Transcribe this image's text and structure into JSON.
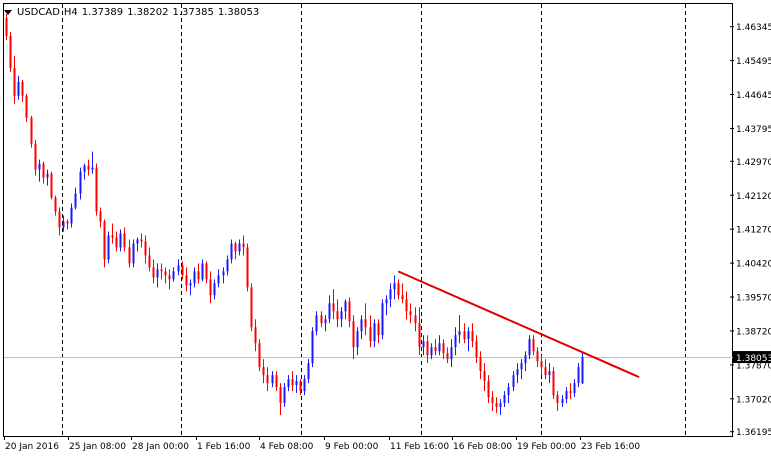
{
  "header": {
    "symbol": "USDCAD",
    "timeframe": "H4",
    "open": "1.37389",
    "high": "1.38202",
    "low": "1.37385",
    "close": "1.38053"
  },
  "price_scale": {
    "ticks": [
      "1.46345",
      "1.45495",
      "1.44645",
      "1.43795",
      "1.42970",
      "1.42120",
      "1.41270",
      "1.40420",
      "1.39570",
      "1.38720",
      "1.37870",
      "1.37020",
      "1.36195"
    ],
    "current_price_label": "1.38053"
  },
  "time_scale": {
    "labels": [
      "20 Jan 2016",
      "25 Jan 08:00",
      "28 Jan 00:00",
      "1 Feb 16:00",
      "4 Feb 08:00",
      "9 Feb 00:00",
      "11 Feb 16:00",
      "16 Feb 08:00",
      "19 Feb 00:00",
      "23 Feb 16:00"
    ]
  },
  "colors": {
    "bull": "#1a1aff",
    "bear": "#ff0000",
    "trendline": "#e00000",
    "grid": "#000000",
    "price_line": "#c0c0c0"
  },
  "chart_data": {
    "type": "candlestick",
    "symbol": "USDCAD",
    "timeframe": "H4",
    "ylim": [
      1.3615,
      1.4665
    ],
    "candles": [
      [
        1.4655,
        1.4665,
        1.46,
        1.461
      ],
      [
        1.461,
        1.462,
        1.452,
        1.453
      ],
      [
        1.453,
        1.456,
        1.444,
        1.446
      ],
      [
        1.446,
        1.451,
        1.445,
        1.4495
      ],
      [
        1.4495,
        1.45,
        1.4445,
        1.446
      ],
      [
        1.446,
        1.4465,
        1.4395,
        1.4405
      ],
      [
        1.4405,
        1.441,
        1.433,
        1.434
      ],
      [
        1.434,
        1.435,
        1.426,
        1.4275
      ],
      [
        1.4275,
        1.43,
        1.4245,
        1.429
      ],
      [
        1.429,
        1.4295,
        1.424,
        1.4255
      ],
      [
        1.4255,
        1.4275,
        1.4235,
        1.4265
      ],
      [
        1.4265,
        1.427,
        1.42,
        1.4205
      ],
      [
        1.4205,
        1.421,
        1.416,
        1.417
      ],
      [
        1.417,
        1.418,
        1.411,
        1.413
      ],
      [
        1.413,
        1.416,
        1.412,
        1.4145
      ],
      [
        1.4145,
        1.415,
        1.4125,
        1.414
      ],
      [
        1.414,
        1.419,
        1.413,
        1.418
      ],
      [
        1.418,
        1.423,
        1.4175,
        1.4215
      ],
      [
        1.4215,
        1.428,
        1.42,
        1.427
      ],
      [
        1.427,
        1.429,
        1.425,
        1.4285
      ],
      [
        1.4285,
        1.43,
        1.426,
        1.4275
      ],
      [
        1.4275,
        1.432,
        1.4265,
        1.428
      ],
      [
        1.428,
        1.429,
        1.416,
        1.417
      ],
      [
        1.417,
        1.418,
        1.413,
        1.4145
      ],
      [
        1.4145,
        1.415,
        1.403,
        1.405
      ],
      [
        1.405,
        1.412,
        1.404,
        1.411
      ],
      [
        1.411,
        1.414,
        1.409,
        1.4105
      ],
      [
        1.4105,
        1.412,
        1.407,
        1.408
      ],
      [
        1.408,
        1.4125,
        1.407,
        1.4115
      ],
      [
        1.4115,
        1.413,
        1.407,
        1.408
      ],
      [
        1.408,
        1.41,
        1.403,
        1.404
      ],
      [
        1.404,
        1.41,
        1.403,
        1.409
      ],
      [
        1.409,
        1.4105,
        1.407,
        1.41
      ],
      [
        1.41,
        1.4115,
        1.408,
        1.4095
      ],
      [
        1.4095,
        1.411,
        1.404,
        1.406
      ],
      [
        1.406,
        1.408,
        1.402,
        1.403
      ],
      [
        1.403,
        1.405,
        1.399,
        1.4005
      ],
      [
        1.4005,
        1.404,
        1.398,
        1.4025
      ],
      [
        1.4025,
        1.404,
        1.4,
        1.402
      ],
      [
        1.402,
        1.403,
        1.399,
        1.401
      ],
      [
        1.401,
        1.4025,
        1.3975,
        1.4
      ],
      [
        1.4,
        1.403,
        1.3995,
        1.402
      ],
      [
        1.402,
        1.405,
        1.401,
        1.4035
      ],
      [
        1.4035,
        1.4045,
        1.4,
        1.401
      ],
      [
        1.401,
        1.403,
        1.397,
        1.3985
      ],
      [
        1.3985,
        1.4,
        1.396,
        1.399
      ],
      [
        1.399,
        1.403,
        1.398,
        1.402
      ],
      [
        1.402,
        1.404,
        1.399,
        1.4
      ],
      [
        1.4,
        1.405,
        1.3995,
        1.404
      ],
      [
        1.404,
        1.4045,
        1.399,
        1.4
      ],
      [
        1.4,
        1.402,
        1.394,
        1.396
      ],
      [
        1.396,
        1.4,
        1.395,
        1.399
      ],
      [
        1.399,
        1.4025,
        1.398,
        1.401
      ],
      [
        1.401,
        1.403,
        1.399,
        1.402
      ],
      [
        1.402,
        1.406,
        1.401,
        1.405
      ],
      [
        1.405,
        1.41,
        1.404,
        1.409
      ],
      [
        1.409,
        1.4095,
        1.405,
        1.407
      ],
      [
        1.407,
        1.41,
        1.406,
        1.409
      ],
      [
        1.409,
        1.411,
        1.406,
        1.408
      ],
      [
        1.408,
        1.409,
        1.397,
        1.398
      ],
      [
        1.398,
        1.399,
        1.387,
        1.388
      ],
      [
        1.388,
        1.39,
        1.382,
        1.384
      ],
      [
        1.384,
        1.385,
        1.377,
        1.378
      ],
      [
        1.378,
        1.38,
        1.374,
        1.376
      ],
      [
        1.376,
        1.378,
        1.372,
        1.374
      ],
      [
        1.374,
        1.377,
        1.373,
        1.376
      ],
      [
        1.376,
        1.377,
        1.372,
        1.373
      ],
      [
        1.373,
        1.374,
        1.366,
        1.369
      ],
      [
        1.369,
        1.374,
        1.368,
        1.373
      ],
      [
        1.373,
        1.376,
        1.372,
        1.375
      ],
      [
        1.375,
        1.377,
        1.372,
        1.3735
      ],
      [
        1.3735,
        1.376,
        1.3715,
        1.3745
      ],
      [
        1.3745,
        1.375,
        1.371,
        1.372
      ],
      [
        1.372,
        1.376,
        1.371,
        1.375
      ],
      [
        1.375,
        1.38,
        1.374,
        1.379
      ],
      [
        1.379,
        1.388,
        1.378,
        1.387
      ],
      [
        1.387,
        1.392,
        1.386,
        1.391
      ],
      [
        1.391,
        1.392,
        1.388,
        1.389
      ],
      [
        1.389,
        1.391,
        1.387,
        1.39
      ],
      [
        1.39,
        1.396,
        1.389,
        1.394
      ],
      [
        1.394,
        1.3975,
        1.39,
        1.392
      ],
      [
        1.392,
        1.395,
        1.388,
        1.39
      ],
      [
        1.39,
        1.393,
        1.388,
        1.392
      ],
      [
        1.392,
        1.395,
        1.39,
        1.3945
      ],
      [
        1.3945,
        1.3955,
        1.388,
        1.3895
      ],
      [
        1.3895,
        1.391,
        1.38,
        1.383
      ],
      [
        1.383,
        1.388,
        1.381,
        1.387
      ],
      [
        1.387,
        1.391,
        1.385,
        1.39
      ],
      [
        1.39,
        1.394,
        1.386,
        1.388
      ],
      [
        1.388,
        1.391,
        1.383,
        1.3845
      ],
      [
        1.3845,
        1.39,
        1.383,
        1.389
      ],
      [
        1.389,
        1.39,
        1.384,
        1.386
      ],
      [
        1.386,
        1.395,
        1.385,
        1.394
      ],
      [
        1.394,
        1.396,
        1.391,
        1.395
      ],
      [
        1.395,
        1.399,
        1.393,
        1.3975
      ],
      [
        1.3975,
        1.401,
        1.395,
        1.399
      ],
      [
        1.399,
        1.4,
        1.395,
        1.396
      ],
      [
        1.396,
        1.399,
        1.394,
        1.395
      ],
      [
        1.395,
        1.397,
        1.39,
        1.392
      ],
      [
        1.392,
        1.394,
        1.389,
        1.391
      ],
      [
        1.391,
        1.393,
        1.387,
        1.389
      ],
      [
        1.389,
        1.393,
        1.381,
        1.383
      ],
      [
        1.383,
        1.386,
        1.381,
        1.3845
      ],
      [
        1.3845,
        1.386,
        1.379,
        1.381
      ],
      [
        1.381,
        1.384,
        1.38,
        1.383
      ],
      [
        1.383,
        1.385,
        1.381,
        1.382
      ],
      [
        1.382,
        1.386,
        1.381,
        1.384
      ],
      [
        1.384,
        1.385,
        1.38,
        1.3815
      ],
      [
        1.3815,
        1.383,
        1.379,
        1.38
      ],
      [
        1.38,
        1.385,
        1.378,
        1.383
      ],
      [
        1.383,
        1.388,
        1.381,
        1.386
      ],
      [
        1.386,
        1.391,
        1.384,
        1.387
      ],
      [
        1.387,
        1.389,
        1.384,
        1.385
      ],
      [
        1.385,
        1.388,
        1.382,
        1.387
      ],
      [
        1.387,
        1.389,
        1.383,
        1.3845
      ],
      [
        1.3845,
        1.386,
        1.379,
        1.3805
      ],
      [
        1.3805,
        1.382,
        1.375,
        1.377
      ],
      [
        1.377,
        1.379,
        1.372,
        1.3745
      ],
      [
        1.3745,
        1.376,
        1.369,
        1.3705
      ],
      [
        1.3705,
        1.372,
        1.367,
        1.369
      ],
      [
        1.369,
        1.3705,
        1.3665,
        1.368
      ],
      [
        1.368,
        1.37,
        1.366,
        1.369
      ],
      [
        1.369,
        1.372,
        1.368,
        1.371
      ],
      [
        1.371,
        1.374,
        1.369,
        1.373
      ],
      [
        1.373,
        1.377,
        1.372,
        1.376
      ],
      [
        1.376,
        1.379,
        1.374,
        1.3775
      ],
      [
        1.3775,
        1.38,
        1.375,
        1.379
      ],
      [
        1.379,
        1.382,
        1.377,
        1.381
      ],
      [
        1.381,
        1.386,
        1.38,
        1.385
      ],
      [
        1.385,
        1.386,
        1.381,
        1.382
      ],
      [
        1.382,
        1.383,
        1.378,
        1.3795
      ],
      [
        1.3795,
        1.381,
        1.376,
        1.378
      ],
      [
        1.378,
        1.38,
        1.375,
        1.376
      ],
      [
        1.376,
        1.379,
        1.374,
        1.377
      ],
      [
        1.377,
        1.378,
        1.37,
        1.371
      ],
      [
        1.371,
        1.372,
        1.367,
        1.369
      ],
      [
        1.369,
        1.371,
        1.368,
        1.37
      ],
      [
        1.37,
        1.373,
        1.369,
        1.372
      ],
      [
        1.372,
        1.374,
        1.37,
        1.3715
      ],
      [
        1.3715,
        1.375,
        1.3705,
        1.374
      ],
      [
        1.374,
        1.379,
        1.373,
        1.378
      ],
      [
        1.3739,
        1.382,
        1.3738,
        1.3805
      ]
    ],
    "trendline": {
      "from": [
        1.402,
        96
      ],
      "to": [
        1.3755,
        155
      ]
    }
  }
}
